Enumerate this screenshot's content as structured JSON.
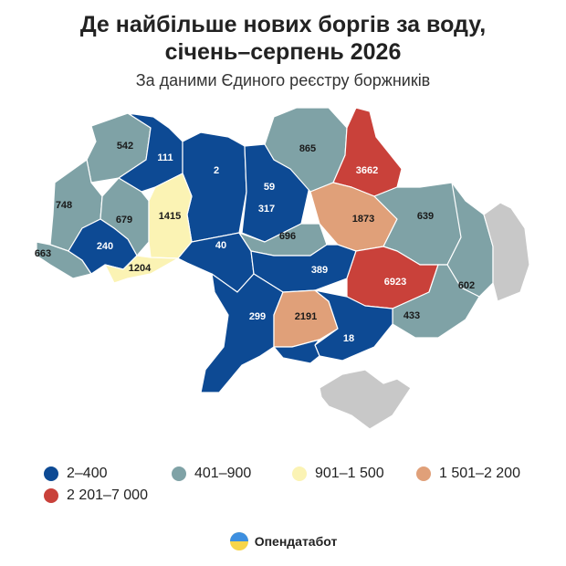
{
  "title_line1": "Де найбільше нових боргів за воду,",
  "title_line2": "січень–серпень 2026",
  "subtitle": "За даними Єдиного реєстру боржників",
  "legend": [
    {
      "label": "2–400",
      "color": "#0d4a94"
    },
    {
      "label": "401–900",
      "color": "#7fa2a6"
    },
    {
      "label": "901–1 500",
      "color": "#fbf3b4"
    },
    {
      "label": "1 501–2 200",
      "color": "#e0a079"
    },
    {
      "label": "2 201–7 000",
      "color": "#c9413a"
    }
  ],
  "no_data_color": "#c8c8c8",
  "regions": [
    {
      "id": "volyn",
      "value": "542",
      "cls": 1
    },
    {
      "id": "rivne",
      "value": "111",
      "cls": 0
    },
    {
      "id": "zhytomyr",
      "value": "2",
      "cls": 0
    },
    {
      "id": "kyiv-city",
      "value": "59",
      "cls": 0
    },
    {
      "id": "kyiv-oblast",
      "value": "317",
      "cls": 0
    },
    {
      "id": "chernihiv",
      "value": "865",
      "cls": 1
    },
    {
      "id": "sumy",
      "value": "3662",
      "cls": 4
    },
    {
      "id": "lviv",
      "value": "748",
      "cls": 1
    },
    {
      "id": "ternopil",
      "value": "679",
      "cls": 1
    },
    {
      "id": "khmelnytskyi",
      "value": "1415",
      "cls": 2
    },
    {
      "id": "vinnytsia",
      "value": "40",
      "cls": 0
    },
    {
      "id": "cherkasy",
      "value": "696",
      "cls": 1
    },
    {
      "id": "poltava",
      "value": "1873",
      "cls": 3
    },
    {
      "id": "kharkiv",
      "value": "639",
      "cls": 1
    },
    {
      "id": "zakarpattia",
      "value": "663",
      "cls": 1
    },
    {
      "id": "ivano-frankivsk",
      "value": "240",
      "cls": 0
    },
    {
      "id": "chernivtsi",
      "value": "1204",
      "cls": 2
    },
    {
      "id": "kirovohrad",
      "value": "389",
      "cls": 0
    },
    {
      "id": "dnipropetrovsk",
      "value": "6923",
      "cls": 4
    },
    {
      "id": "luhansk",
      "value": "602",
      "cls": 1
    },
    {
      "id": "donetsk",
      "value": "433",
      "cls": 1
    },
    {
      "id": "odesa",
      "value": "299",
      "cls": 0
    },
    {
      "id": "mykolaiv",
      "value": "2191",
      "cls": 3
    },
    {
      "id": "zaporizhzhia",
      "value": "18",
      "cls": 0
    },
    {
      "id": "kherson",
      "value": "",
      "cls": 0
    },
    {
      "id": "crimea",
      "value": "",
      "cls": -1
    },
    {
      "id": "luhansk-occupied",
      "value": "",
      "cls": -1
    }
  ],
  "brand": "Опендатабот"
}
